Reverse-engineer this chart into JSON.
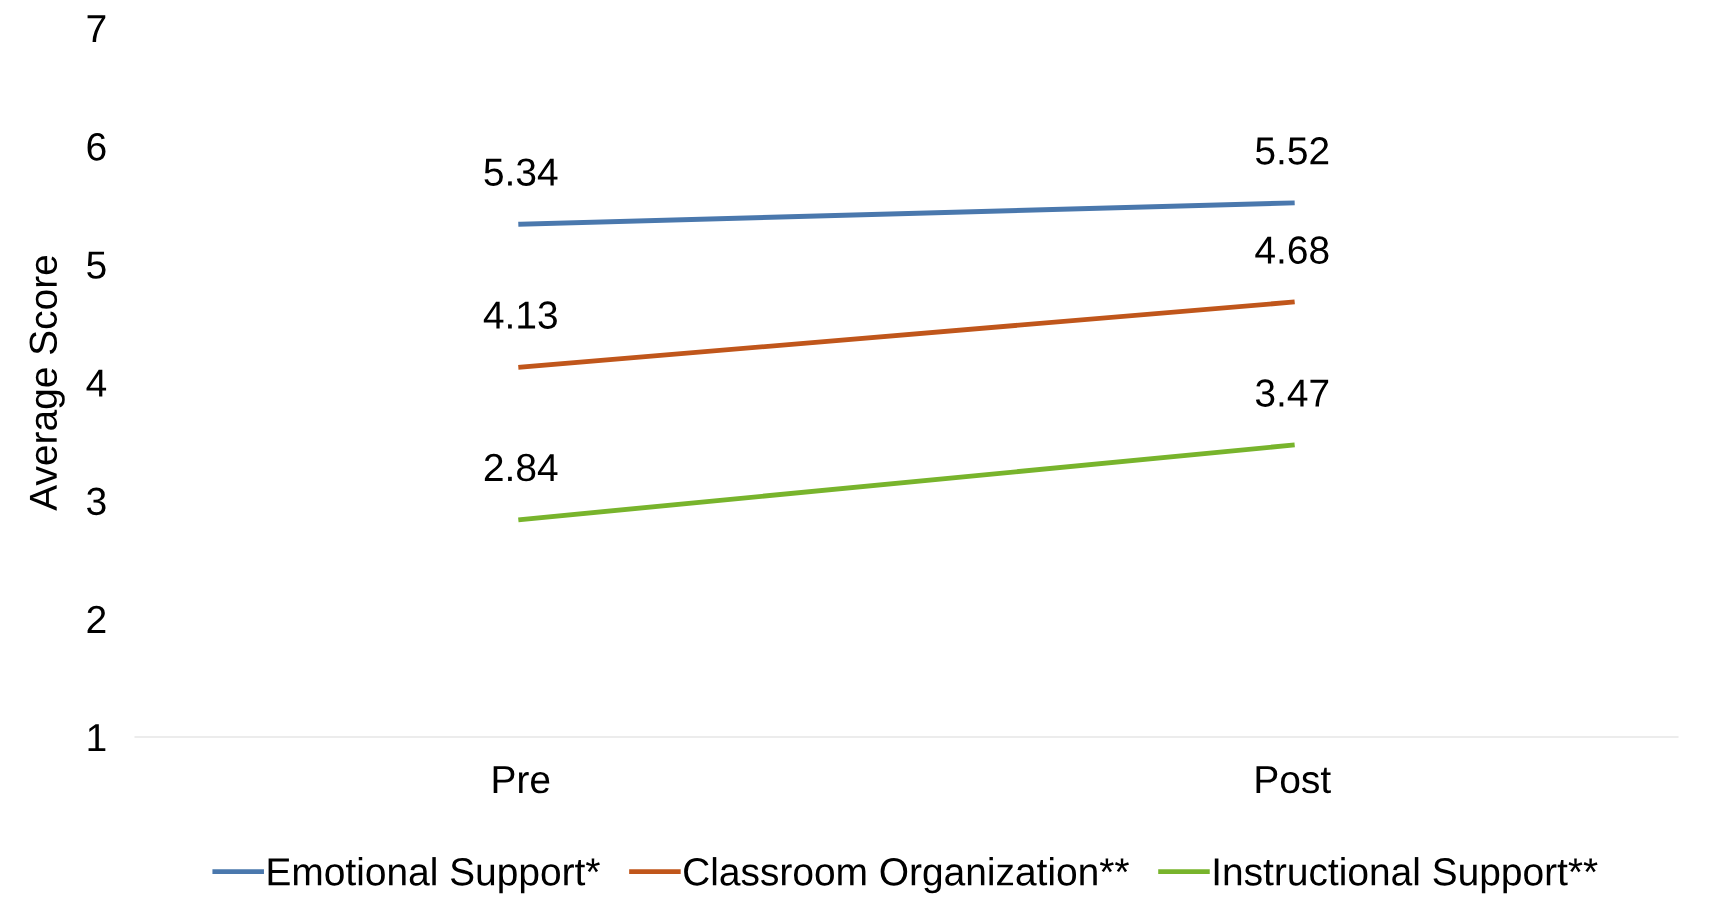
{
  "chart_data": {
    "type": "line",
    "ylabel": "Average Score",
    "categories": [
      "Pre",
      "Post"
    ],
    "series": [
      {
        "name": "Emotional Support*",
        "color": "#4a78ad",
        "values": [
          5.34,
          5.52
        ]
      },
      {
        "name": "Classroom Organization**",
        "color": "#c0561b",
        "values": [
          4.13,
          4.68
        ]
      },
      {
        "name": "Instructional Support**",
        "color": "#78b42c",
        "values": [
          2.84,
          3.47
        ]
      }
    ],
    "ylim": [
      1,
      7
    ],
    "yticks": [
      1,
      2,
      3,
      4,
      5,
      6,
      7
    ],
    "grid": false,
    "legend": "bottom",
    "data_labels": true,
    "marker": "none",
    "line_style": "solid"
  }
}
